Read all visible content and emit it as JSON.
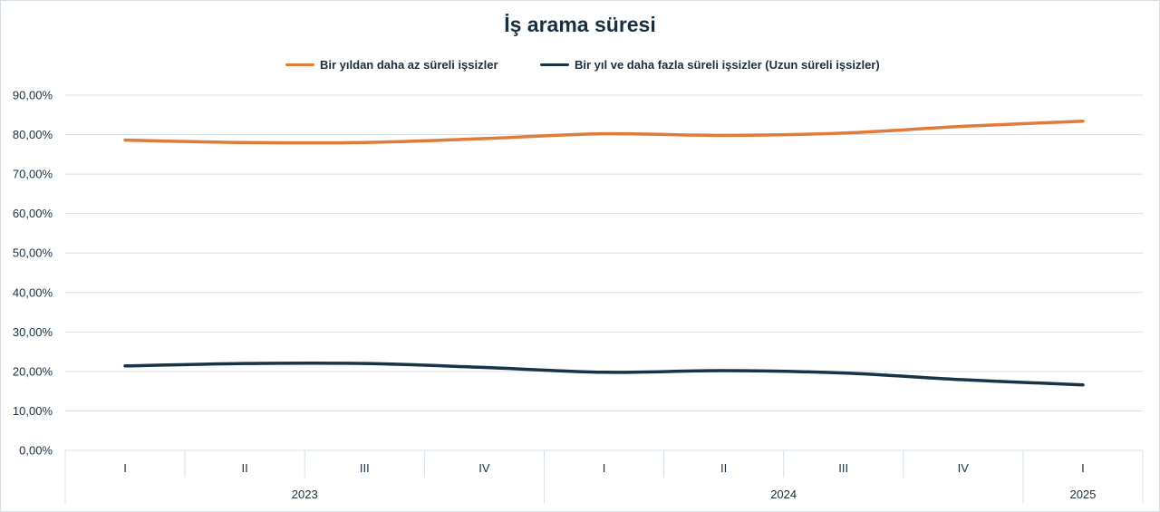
{
  "chart_data": {
    "type": "line",
    "title": "İş arama süresi",
    "xlabel": "",
    "ylabel": "",
    "ylim": [
      0,
      90
    ],
    "y_tick_values": [
      0,
      10,
      20,
      30,
      40,
      50,
      60,
      70,
      80,
      90
    ],
    "y_tick_labels": [
      "0,00%",
      "10,00%",
      "20,00%",
      "30,00%",
      "40,00%",
      "50,00%",
      "60,00%",
      "70,00%",
      "80,00%",
      "90,00%"
    ],
    "grid": true,
    "legend_position": "top",
    "categories": [
      "I",
      "II",
      "III",
      "IV",
      "I",
      "II",
      "III",
      "IV",
      "I"
    ],
    "category_groups": [
      {
        "label": "2023",
        "span": 4
      },
      {
        "label": "2024",
        "span": 4
      },
      {
        "label": "2025",
        "span": 1
      }
    ],
    "series": [
      {
        "name": "Bir yıldan daha az süreli işsizler",
        "color": "#e07b39",
        "values": [
          78.6,
          78.0,
          78.0,
          79.0,
          80.2,
          79.8,
          80.4,
          82.1,
          83.4
        ]
      },
      {
        "name": "Bir yıl ve daha fazla süreli işsizler (Uzun süreli işsizler)",
        "color": "#163447",
        "values": [
          21.4,
          22.0,
          22.0,
          21.0,
          19.8,
          20.2,
          19.6,
          17.9,
          16.6
        ]
      }
    ]
  }
}
